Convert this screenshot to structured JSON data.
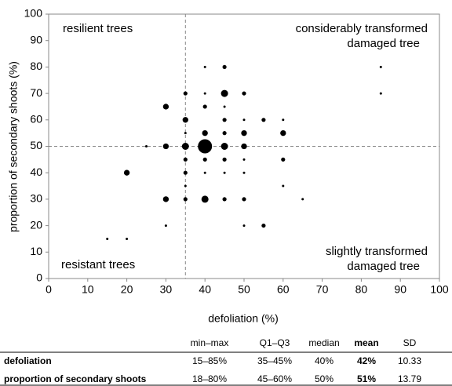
{
  "chart_data": {
    "type": "bubble",
    "xlabel": "defoliation (%)",
    "ylabel": "proportion of secondary shoots (%)",
    "xlim": [
      0,
      100
    ],
    "ylim": [
      0,
      100
    ],
    "xticks": [
      0,
      10,
      20,
      30,
      40,
      50,
      60,
      70,
      80,
      90,
      100
    ],
    "yticks": [
      0,
      10,
      20,
      30,
      40,
      50,
      60,
      70,
      80,
      90,
      100
    ],
    "color": "#000000",
    "reference_lines": {
      "x": 35,
      "y": 50
    },
    "annotations": [
      "resilient trees",
      "considerably transformed damaged tree",
      "resistant trees",
      "slightly transformed damaged tree"
    ],
    "x": [
      15,
      20,
      20,
      25,
      30,
      30,
      30,
      30,
      35,
      35,
      35,
      35,
      35,
      35,
      35,
      35,
      40,
      40,
      40,
      40,
      40,
      40,
      40,
      40,
      45,
      45,
      45,
      45,
      45,
      45,
      45,
      45,
      45,
      50,
      50,
      50,
      50,
      50,
      50,
      50,
      50,
      55,
      55,
      60,
      60,
      60,
      60,
      65,
      85,
      85
    ],
    "y": [
      15,
      15,
      40,
      50,
      65,
      50,
      30,
      20,
      70,
      60,
      55,
      50,
      45,
      40,
      35,
      30,
      80,
      70,
      65,
      55,
      50,
      45,
      40,
      30,
      80,
      70,
      65,
      60,
      55,
      50,
      45,
      40,
      30,
      70,
      60,
      55,
      50,
      45,
      40,
      30,
      20,
      60,
      20,
      60,
      55,
      45,
      35,
      30,
      80,
      70
    ],
    "sizes": [
      1,
      1,
      6,
      1,
      6,
      6,
      6,
      1,
      3,
      6,
      1,
      9,
      3,
      3,
      1,
      3,
      1,
      1,
      3,
      6,
      36,
      3,
      1,
      9,
      3,
      9,
      1,
      3,
      3,
      9,
      3,
      1,
      3,
      3,
      1,
      6,
      6,
      1,
      1,
      3,
      1,
      3,
      3,
      1,
      6,
      3,
      1,
      1,
      1,
      1
    ]
  },
  "table": {
    "columns": [
      "min–max",
      "Q1–Q3",
      "median",
      "mean",
      "SD"
    ],
    "rows": [
      {
        "label": "defoliation",
        "cells": [
          "15–85%",
          "35–45%",
          "40%",
          "42%",
          "10.33"
        ]
      },
      {
        "label": "proportion of secondary shoots",
        "cells": [
          "18–80%",
          "45–60%",
          "50%",
          "51%",
          "13.79"
        ]
      }
    ]
  }
}
